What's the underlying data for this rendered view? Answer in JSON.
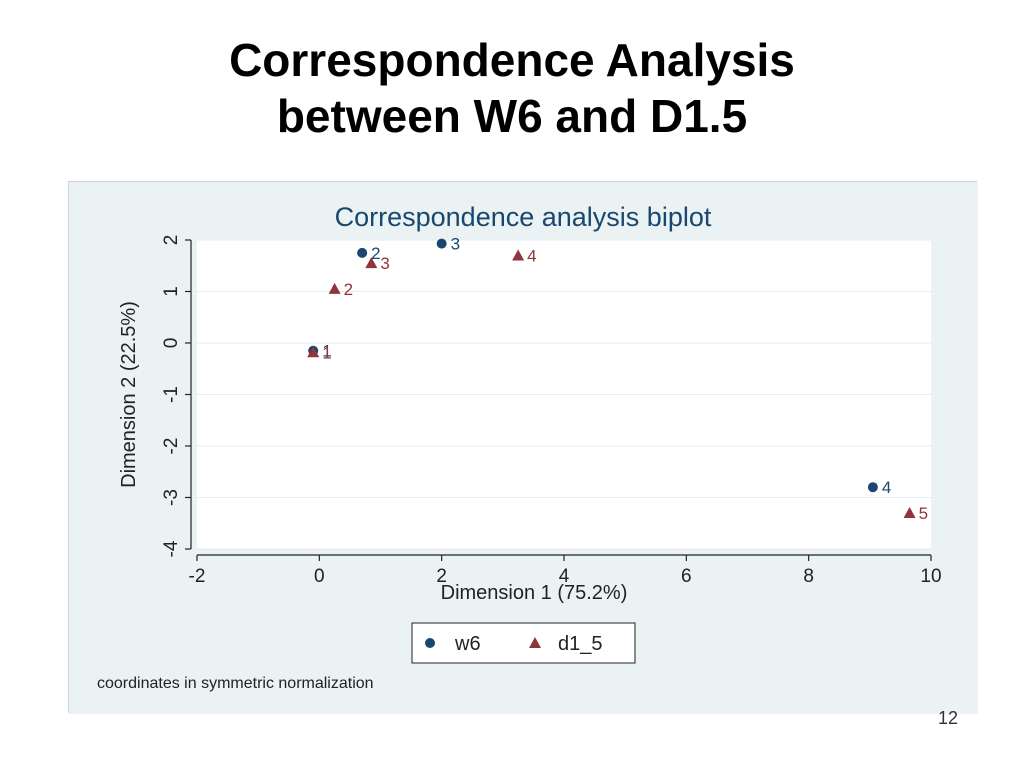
{
  "slide": {
    "title_line1": "Correspondence Analysis",
    "title_line2": "between W6 and D1.5",
    "page_number": "12"
  },
  "colors": {
    "background": "#eaf2f3",
    "plot_area": "#ffffff",
    "w6": "#1a476f",
    "d1_5": "#90353b",
    "title": "#1a476f"
  },
  "chart_data": {
    "type": "scatter",
    "title": "Correspondence analysis biplot",
    "xlabel": "Dimension 1 (75.2%)",
    "ylabel": "Dimension 2 (22.5%)",
    "xlim": [
      -2,
      10
    ],
    "ylim": [
      -4,
      2
    ],
    "xticks": [
      -2,
      0,
      2,
      4,
      6,
      8,
      10
    ],
    "yticks": [
      -4,
      -3,
      -2,
      -1,
      0,
      1,
      2
    ],
    "grid": true,
    "note": "coordinates in symmetric normalization",
    "legend_position": "bottom",
    "series": [
      {
        "name": "w6",
        "marker": "circle",
        "points": [
          {
            "x": -0.1,
            "y": -0.15,
            "label": "1"
          },
          {
            "x": 0.7,
            "y": 1.75,
            "label": "2"
          },
          {
            "x": 2.0,
            "y": 1.93,
            "label": "3"
          },
          {
            "x": 9.05,
            "y": -2.8,
            "label": "4"
          }
        ]
      },
      {
        "name": "d1_5",
        "marker": "triangle",
        "points": [
          {
            "x": -0.1,
            "y": -0.18,
            "label": "1"
          },
          {
            "x": 0.25,
            "y": 1.05,
            "label": "2"
          },
          {
            "x": 0.85,
            "y": 1.55,
            "label": "3"
          },
          {
            "x": 3.25,
            "y": 1.7,
            "label": "4"
          },
          {
            "x": 9.65,
            "y": -3.3,
            "label": "5"
          }
        ]
      }
    ]
  }
}
